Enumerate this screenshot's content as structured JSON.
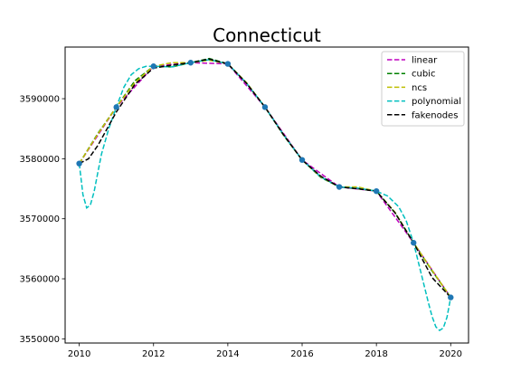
{
  "chart_data": {
    "type": "line",
    "title": "Connecticut",
    "xlabel": "",
    "ylabel": "",
    "xlim": [
      2009.62,
      2020.48
    ],
    "ylim": [
      3549300,
      3598600
    ],
    "xticks": [
      2010,
      2012,
      2014,
      2016,
      2018,
      2020
    ],
    "yticks": [
      3550000,
      3560000,
      3570000,
      3580000,
      3590000
    ],
    "grid": false,
    "legend_position": "top-right",
    "points": {
      "x": [
        2010,
        2011,
        2012,
        2013,
        2014,
        2015,
        2016,
        2017,
        2018,
        2019,
        2020
      ],
      "y": [
        3579200,
        3588600,
        3595400,
        3596000,
        3595800,
        3588600,
        3579800,
        3575300,
        3574600,
        3566000,
        3556900
      ],
      "color": "#1f77b4"
    },
    "series": [
      {
        "name": "linear",
        "color": "#bf00bf",
        "x": [
          2010,
          2011,
          2012,
          2013,
          2014,
          2015,
          2016,
          2017,
          2018,
          2019,
          2020
        ],
        "y": [
          3579200,
          3588600,
          3595400,
          3596000,
          3595800,
          3588600,
          3579800,
          3575300,
          3574600,
          3566000,
          3556900
        ]
      },
      {
        "name": "cubic",
        "color": "#008000",
        "x": [
          2010,
          2010.5,
          2011,
          2011.5,
          2012,
          2012.5,
          2013,
          2013.5,
          2014,
          2014.5,
          2015,
          2015.5,
          2016,
          2016.5,
          2017,
          2017.5,
          2018,
          2018.5,
          2019,
          2019.5,
          2020
        ],
        "y": [
          3579200,
          3584200,
          3588600,
          3593000,
          3595400,
          3595300,
          3596000,
          3596700,
          3595800,
          3592600,
          3588600,
          3583900,
          3579800,
          3576900,
          3575300,
          3575000,
          3574600,
          3571000,
          3566000,
          3561300,
          3556900
        ]
      },
      {
        "name": "ncs",
        "color": "#bfbf00",
        "x": [
          2010,
          2010.5,
          2011,
          2011.5,
          2012,
          2012.5,
          2013,
          2013.5,
          2014,
          2014.5,
          2015,
          2015.5,
          2016,
          2016.5,
          2017,
          2017.5,
          2018,
          2018.5,
          2019,
          2019.5,
          2020
        ],
        "y": [
          3579200,
          3584100,
          3588600,
          3592700,
          3595400,
          3596000,
          3596000,
          3596400,
          3595800,
          3592700,
          3588600,
          3584000,
          3579800,
          3577000,
          3575300,
          3575300,
          3574600,
          3571100,
          3566000,
          3561400,
          3556900
        ]
      },
      {
        "name": "polynomial",
        "color": "#00bfbf",
        "x": [
          2010,
          2010.1,
          2010.2,
          2010.3,
          2010.4,
          2010.5,
          2010.6,
          2010.8,
          2011,
          2011.2,
          2011.4,
          2011.6,
          2011.8,
          2012,
          2012.5,
          2013,
          2013.5,
          2014,
          2014.5,
          2015,
          2015.5,
          2016,
          2016.5,
          2017,
          2017.5,
          2018,
          2018.3,
          2018.6,
          2018.8,
          2019,
          2019.2,
          2019.4,
          2019.5,
          2019.6,
          2019.7,
          2019.8,
          2019.9,
          2020
        ],
        "y": [
          3579200,
          3574000,
          3571800,
          3572300,
          3574500,
          3577700,
          3580800,
          3585100,
          3588600,
          3591900,
          3594000,
          3595000,
          3595400,
          3595400,
          3595300,
          3596000,
          3596500,
          3595800,
          3592600,
          3588600,
          3584000,
          3579800,
          3577000,
          3575300,
          3575100,
          3574600,
          3573800,
          3572000,
          3569700,
          3566000,
          3561000,
          3556000,
          3553700,
          3552000,
          3551400,
          3551800,
          3553600,
          3556900
        ]
      },
      {
        "name": "fakenodes",
        "color": "#000000",
        "x": [
          2010,
          2010.25,
          2010.5,
          2011,
          2011.5,
          2012,
          2012.5,
          2013,
          2013.5,
          2014,
          2014.5,
          2015,
          2015.5,
          2016,
          2016.5,
          2017,
          2017.5,
          2018,
          2018.5,
          2019,
          2019.5,
          2020
        ],
        "y": [
          3579200,
          3580000,
          3582200,
          3587800,
          3592400,
          3595100,
          3595600,
          3596000,
          3596600,
          3595800,
          3592600,
          3588600,
          3584000,
          3579800,
          3577100,
          3575300,
          3575000,
          3574600,
          3571000,
          3566000,
          3560200,
          3556900
        ]
      }
    ]
  }
}
